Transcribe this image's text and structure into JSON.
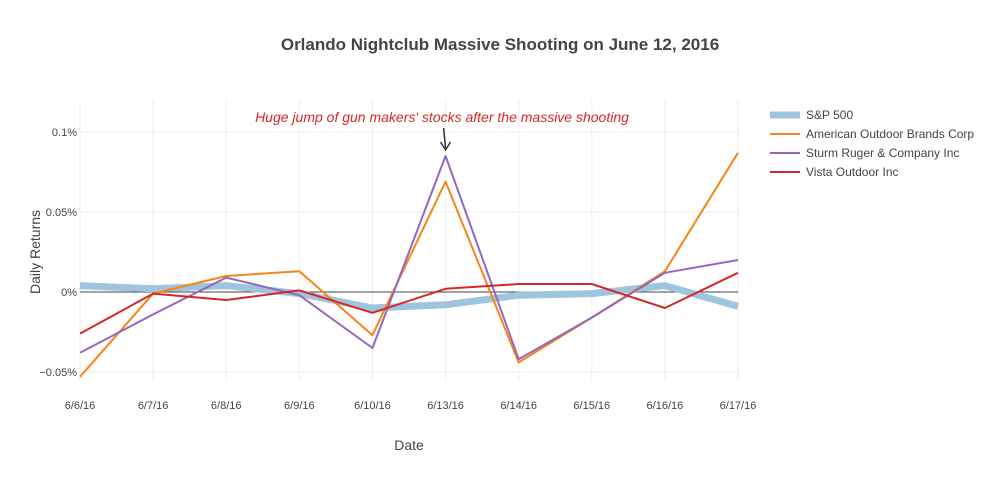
{
  "chart_data": {
    "type": "line",
    "title": "Orlando Nightclub Massive Shooting on June 12, 2016",
    "xlabel": "Date",
    "ylabel": "Daily Returns",
    "x": [
      "6/6/16",
      "6/7/16",
      "6/8/16",
      "6/9/16",
      "6/10/16",
      "6/13/16",
      "6/14/16",
      "6/15/16",
      "6/16/16",
      "6/17/16"
    ],
    "ylim": [
      -0.055,
      0.12
    ],
    "yticks": [
      {
        "value": -0.05,
        "label": "−0.05%"
      },
      {
        "value": 0,
        "label": "0%"
      },
      {
        "value": 0.05,
        "label": "0.05%"
      },
      {
        "value": 0.1,
        "label": "0.1%"
      }
    ],
    "grid": true,
    "legend_position": "top-right",
    "series": [
      {
        "name": "S&P 500",
        "color": "#9ec4de",
        "width": 7,
        "values": [
          0.004,
          0.002,
          0.004,
          -0.001,
          -0.01,
          -0.008,
          -0.002,
          -0.001,
          0.004,
          -0.009
        ]
      },
      {
        "name": "American Outdoor Brands Corp",
        "color": "#f58518",
        "width": 2,
        "values": [
          -0.053,
          -0.001,
          0.01,
          0.013,
          -0.027,
          0.069,
          -0.044,
          -0.016,
          0.013,
          0.087
        ]
      },
      {
        "name": "Sturm Ruger & Company Inc",
        "color": "#9467bd",
        "width": 2,
        "values": [
          -0.038,
          -0.014,
          0.009,
          -0.002,
          -0.035,
          0.085,
          -0.042,
          -0.016,
          0.012,
          0.02
        ]
      },
      {
        "name": "Vista Outdoor Inc",
        "color": "#d62728",
        "width": 2,
        "values": [
          -0.026,
          -0.001,
          -0.005,
          0.001,
          -0.013,
          0.002,
          0.005,
          0.005,
          -0.01,
          0.012
        ]
      }
    ],
    "annotation": {
      "text": "Huge jump of gun makers' stocks after the massive shooting",
      "x_index": 5,
      "y": 0.085
    }
  }
}
